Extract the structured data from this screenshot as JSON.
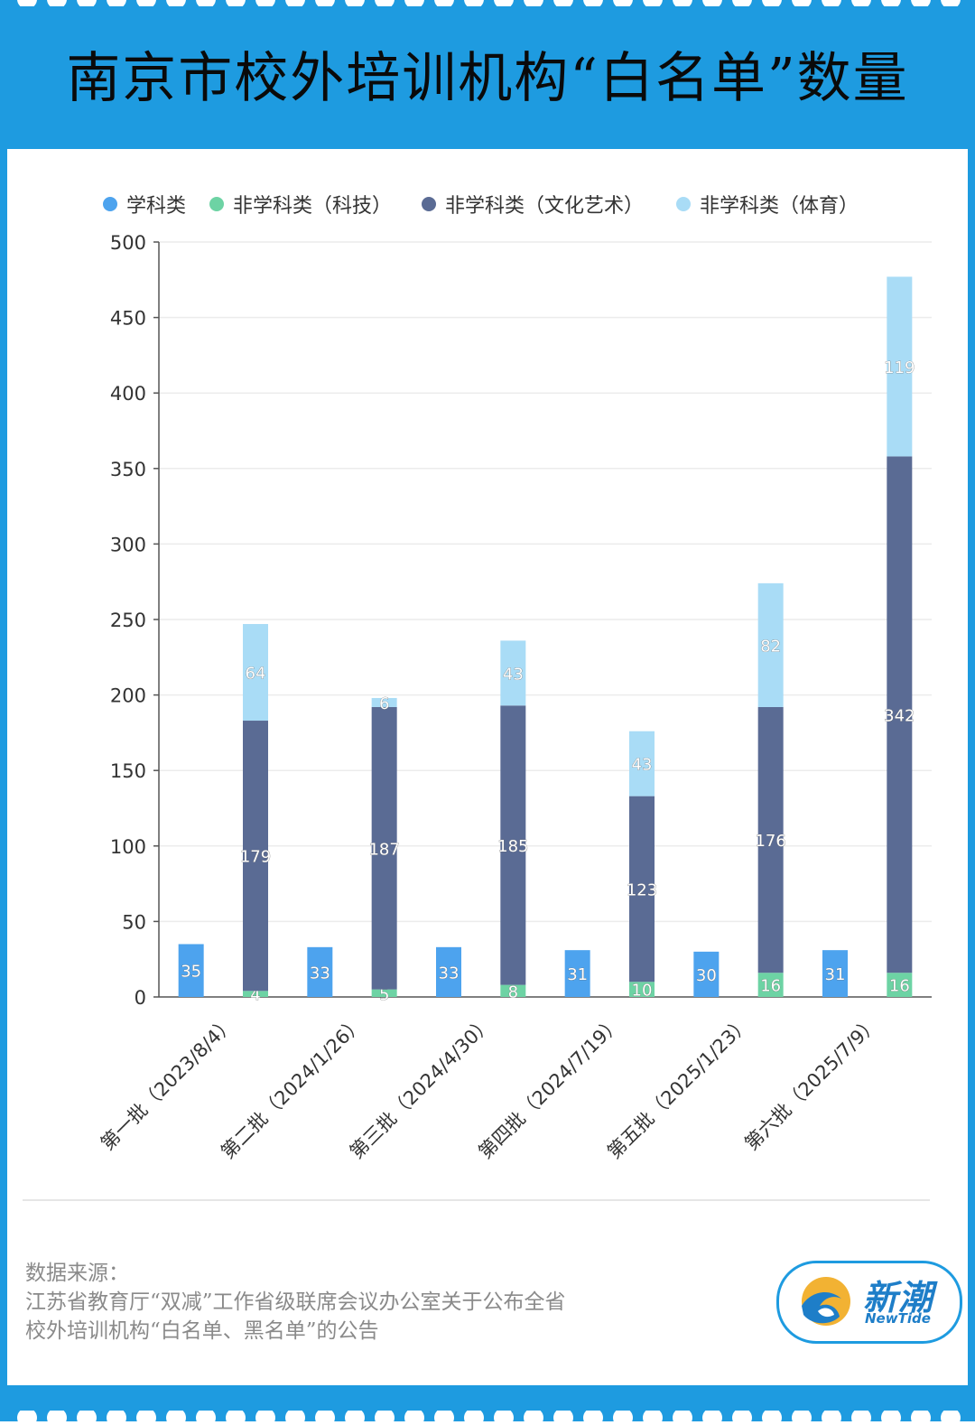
{
  "header": {
    "title": "南京市校外培训机构“白名单”数量"
  },
  "colors": {
    "brand": "#1e9be0",
    "academic": "#4da3ee",
    "tech": "#6dd3a4",
    "culture": "#5a6b94",
    "sports": "#a9dcf6"
  },
  "chart_data": {
    "type": "bar",
    "stacked": true,
    "title": "南京市校外培训机构“白名单”数量",
    "xlabel": "",
    "ylabel": "",
    "ylim": [
      0,
      500
    ],
    "yticks": [
      0,
      50,
      100,
      150,
      200,
      250,
      300,
      350,
      400,
      450,
      500
    ],
    "grid": true,
    "legend_position": "top",
    "categories": [
      "第一批（2023/8/4）",
      "第二批（2024/1/26）",
      "第三批（2024/4/30）",
      "第四批（2024/7/19）",
      "第五批（2025/1/23）",
      "第六批（2025/7/9）"
    ],
    "series": [
      {
        "name": "学科类",
        "color": "#4da3ee",
        "values": [
          35,
          33,
          33,
          31,
          30,
          31
        ]
      },
      {
        "name": "非学科类（科技）",
        "color": "#6dd3a4",
        "values": [
          4,
          5,
          8,
          10,
          16,
          16
        ]
      },
      {
        "name": "非学科类（文化艺术）",
        "color": "#5a6b94",
        "values": [
          179,
          187,
          185,
          123,
          176,
          342
        ]
      },
      {
        "name": "非学科类（体育）",
        "color": "#a9dcf6",
        "values": [
          64,
          6,
          43,
          43,
          82,
          119
        ]
      }
    ]
  },
  "source": {
    "lines": [
      "数据来源：",
      "江苏省教育厅“双减”工作省级联席会议办公室关于公布全省",
      "校外培训机构“白名单、黑名单”的公告"
    ]
  },
  "logo": {
    "name": "新潮",
    "sub": "NewTide"
  }
}
